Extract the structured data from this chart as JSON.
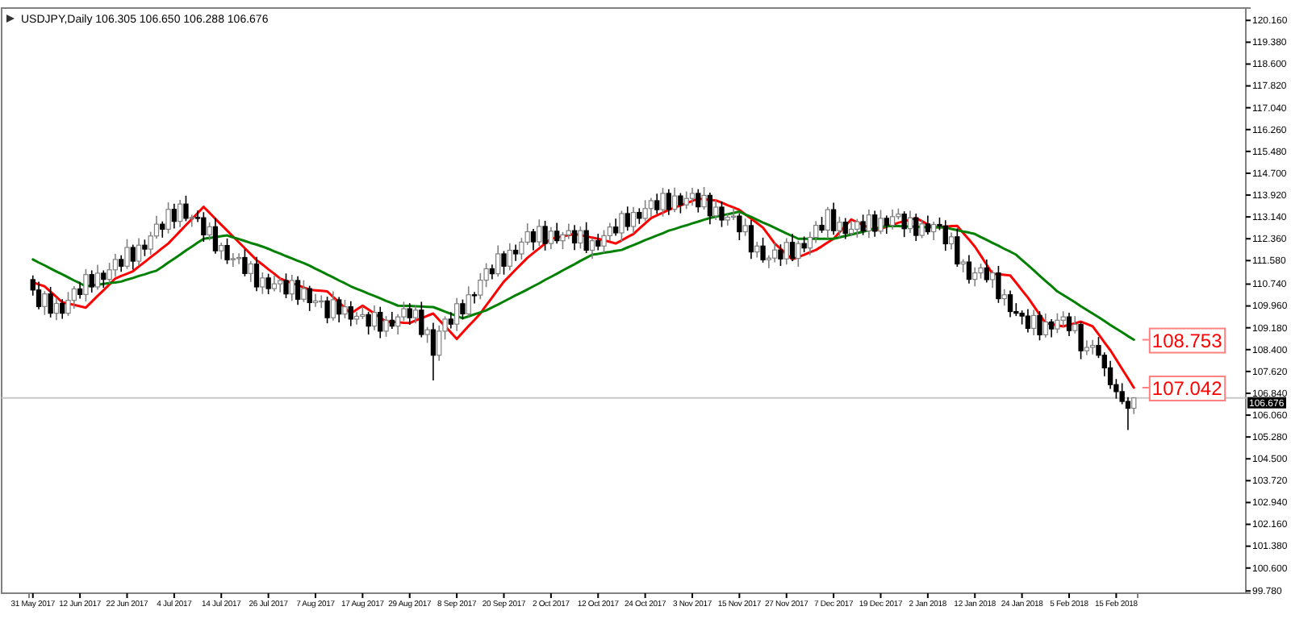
{
  "chart_data": {
    "type": "candlestick",
    "title": "USDJPY,Daily  106.305 106.650 106.288 106.676",
    "categories": [
      "31 May 2017",
      null,
      null,
      null,
      null,
      null,
      null,
      null,
      "12 Jun 2017",
      null,
      null,
      null,
      null,
      null,
      null,
      null,
      "22 Jun 2017",
      null,
      null,
      null,
      null,
      null,
      null,
      null,
      "4 Jul 2017",
      null,
      null,
      null,
      null,
      null,
      null,
      null,
      "14 Jul 2017",
      null,
      null,
      null,
      null,
      null,
      null,
      null,
      "26 Jul 2017",
      null,
      null,
      null,
      null,
      null,
      null,
      null,
      "7 Aug 2017",
      null,
      null,
      null,
      null,
      null,
      null,
      null,
      "17 Aug 2017",
      null,
      null,
      null,
      null,
      null,
      null,
      null,
      "29 Aug 2017",
      null,
      null,
      null,
      null,
      null,
      null,
      null,
      "8 Sep 2017",
      null,
      null,
      null,
      null,
      null,
      null,
      null,
      "20 Sep 2017",
      null,
      null,
      null,
      null,
      null,
      null,
      null,
      "2 Oct 2017",
      null,
      null,
      null,
      null,
      null,
      null,
      null,
      "12 Oct 2017",
      null,
      null,
      null,
      null,
      null,
      null,
      null,
      "24 Oct 2017",
      null,
      null,
      null,
      null,
      null,
      null,
      null,
      "3 Nov 2017",
      null,
      null,
      null,
      null,
      null,
      null,
      null,
      "15 Nov 2017",
      null,
      null,
      null,
      null,
      null,
      null,
      null,
      "27 Nov 2017",
      null,
      null,
      null,
      null,
      null,
      null,
      null,
      "7 Dec 2017",
      null,
      null,
      null,
      null,
      null,
      null,
      null,
      "19 Dec 2017",
      null,
      null,
      null,
      null,
      null,
      null,
      null,
      "2 Jan 2018",
      null,
      null,
      null,
      null,
      null,
      null,
      null,
      "12 Jan 2018",
      null,
      null,
      null,
      null,
      null,
      null,
      null,
      "24 Jan 2018",
      null,
      null,
      null,
      null,
      null,
      null,
      null,
      "5 Feb 2018",
      null,
      null,
      null,
      null,
      null,
      null,
      null,
      "15 Feb 2018",
      null,
      null,
      null
    ],
    "ohlc": [
      [
        110.9,
        111.05,
        110.33,
        110.53
      ],
      [
        110.53,
        110.83,
        109.84,
        109.94
      ],
      [
        109.94,
        110.49,
        109.64,
        110.39
      ],
      [
        110.39,
        110.64,
        109.55,
        109.7
      ],
      [
        109.7,
        110.25,
        109.45,
        110.05
      ],
      [
        110.05,
        110.2,
        109.5,
        109.7
      ],
      [
        109.7,
        110.46,
        109.6,
        110.16
      ],
      [
        110.16,
        110.67,
        109.86,
        110.57
      ],
      [
        110.57,
        110.82,
        110.22,
        110.37
      ],
      [
        110.37,
        111.28,
        110.12,
        111.08
      ],
      [
        111.08,
        111.23,
        110.44,
        110.64
      ],
      [
        110.64,
        111.43,
        110.54,
        111.13
      ],
      [
        111.13,
        111.23,
        110.61,
        110.91
      ],
      [
        110.91,
        111.5,
        110.76,
        111.25
      ],
      [
        111.25,
        111.82,
        111.0,
        111.62
      ],
      [
        111.62,
        111.77,
        111.18,
        111.38
      ],
      [
        111.38,
        112.35,
        111.28,
        112.05
      ],
      [
        112.05,
        112.15,
        111.26,
        111.56
      ],
      [
        111.56,
        112.38,
        111.41,
        112.13
      ],
      [
        112.13,
        112.33,
        111.74,
        111.99
      ],
      [
        111.99,
        112.61,
        111.79,
        112.46
      ],
      [
        112.46,
        113.18,
        112.36,
        112.88
      ],
      [
        112.88,
        112.98,
        112.4,
        112.7
      ],
      [
        112.7,
        113.66,
        112.55,
        113.41
      ],
      [
        113.41,
        113.61,
        112.73,
        112.98
      ],
      [
        112.98,
        113.75,
        112.78,
        113.6
      ],
      [
        113.6,
        113.9,
        112.99,
        113.09
      ],
      [
        113.09,
        113.22,
        112.79,
        113.12
      ],
      [
        113.12,
        113.37,
        112.96,
        113.11
      ],
      [
        113.11,
        113.31,
        112.25,
        112.5
      ],
      [
        112.5,
        112.94,
        112.3,
        112.79
      ],
      [
        112.79,
        113.09,
        111.83,
        111.93
      ],
      [
        111.93,
        112.22,
        111.63,
        112.12
      ],
      [
        112.12,
        112.37,
        111.46,
        111.61
      ],
      [
        111.61,
        111.85,
        111.36,
        111.65
      ],
      [
        111.65,
        111.84,
        111.45,
        111.69
      ],
      [
        111.69,
        111.99,
        111.02,
        111.12
      ],
      [
        111.12,
        111.56,
        110.82,
        111.46
      ],
      [
        111.46,
        111.71,
        110.49,
        110.64
      ],
      [
        110.64,
        111.16,
        110.39,
        110.96
      ],
      [
        110.96,
        111.11,
        110.38,
        110.58
      ],
      [
        110.58,
        111.05,
        110.48,
        110.75
      ],
      [
        110.75,
        110.97,
        110.45,
        110.87
      ],
      [
        110.87,
        111.12,
        110.24,
        110.39
      ],
      [
        110.39,
        111.07,
        110.14,
        110.87
      ],
      [
        110.87,
        111.02,
        110.0,
        110.2
      ],
      [
        110.2,
        110.88,
        110.1,
        110.58
      ],
      [
        110.58,
        110.68,
        109.78,
        110.08
      ],
      [
        110.08,
        110.39,
        109.93,
        110.14
      ],
      [
        110.14,
        110.34,
        109.89,
        110.14
      ],
      [
        110.14,
        110.29,
        109.34,
        109.54
      ],
      [
        109.54,
        110.48,
        109.44,
        110.18
      ],
      [
        110.18,
        110.28,
        109.37,
        109.67
      ],
      [
        109.67,
        110.18,
        109.52,
        109.93
      ],
      [
        109.93,
        110.13,
        109.24,
        109.49
      ],
      [
        109.49,
        109.74,
        109.29,
        109.59
      ],
      [
        109.59,
        109.95,
        109.49,
        109.65
      ],
      [
        109.65,
        109.75,
        108.94,
        109.24
      ],
      [
        109.24,
        109.98,
        109.09,
        109.73
      ],
      [
        109.73,
        109.93,
        108.81,
        109.06
      ],
      [
        109.06,
        109.6,
        108.86,
        109.45
      ],
      [
        109.45,
        109.75,
        109.14,
        109.24
      ],
      [
        109.24,
        109.67,
        108.94,
        109.57
      ],
      [
        109.57,
        110.11,
        109.42,
        109.86
      ],
      [
        109.86,
        110.06,
        109.29,
        109.54
      ],
      [
        109.54,
        109.96,
        109.34,
        109.81
      ],
      [
        109.81,
        110.11,
        108.84,
        108.94
      ],
      [
        108.94,
        109.21,
        108.64,
        109.11
      ],
      [
        109.11,
        109.36,
        107.3,
        108.2
      ],
      [
        108.2,
        109.26,
        108.0,
        109.06
      ],
      [
        109.06,
        109.59,
        108.76,
        109.49
      ],
      [
        109.49,
        109.74,
        109.16,
        109.31
      ],
      [
        109.31,
        110.24,
        109.06,
        110.04
      ],
      [
        110.04,
        110.19,
        109.48,
        109.68
      ],
      [
        109.68,
        110.66,
        109.58,
        110.36
      ],
      [
        110.36,
        110.46,
        110.05,
        110.35
      ],
      [
        110.35,
        111.13,
        110.2,
        110.88
      ],
      [
        110.88,
        111.49,
        110.63,
        111.29
      ],
      [
        111.29,
        111.44,
        110.91,
        111.11
      ],
      [
        111.11,
        112.12,
        111.01,
        111.82
      ],
      [
        111.82,
        111.92,
        111.08,
        111.38
      ],
      [
        111.38,
        112.2,
        111.23,
        111.95
      ],
      [
        111.95,
        112.15,
        111.57,
        111.82
      ],
      [
        111.82,
        112.39,
        111.62,
        112.24
      ],
      [
        112.24,
        112.91,
        112.14,
        112.61
      ],
      [
        112.61,
        112.71,
        111.95,
        112.25
      ],
      [
        112.25,
        113.05,
        112.1,
        112.8
      ],
      [
        112.8,
        113.0,
        111.94,
        112.19
      ],
      [
        112.19,
        112.78,
        111.99,
        112.63
      ],
      [
        112.63,
        112.93,
        112.19,
        112.29
      ],
      [
        112.29,
        112.6,
        111.99,
        112.5
      ],
      [
        112.5,
        112.9,
        112.35,
        112.65
      ],
      [
        112.65,
        112.85,
        111.96,
        112.21
      ],
      [
        112.21,
        112.8,
        112.01,
        112.65
      ],
      [
        112.65,
        112.95,
        111.85,
        111.95
      ],
      [
        111.95,
        112.39,
        111.65,
        112.29
      ],
      [
        112.29,
        112.54,
        111.95,
        112.1
      ],
      [
        112.1,
        112.67,
        111.85,
        112.47
      ],
      [
        112.47,
        112.93,
        112.27,
        112.78
      ],
      [
        112.78,
        113.08,
        112.47,
        112.57
      ],
      [
        112.57,
        113.36,
        112.27,
        113.26
      ],
      [
        113.26,
        113.51,
        112.65,
        112.8
      ],
      [
        112.8,
        113.5,
        112.55,
        113.3
      ],
      [
        113.3,
        113.45,
        112.89,
        113.09
      ],
      [
        113.09,
        113.74,
        112.99,
        113.44
      ],
      [
        113.44,
        113.82,
        113.14,
        113.72
      ],
      [
        113.72,
        113.97,
        113.25,
        113.4
      ],
      [
        113.4,
        114.18,
        113.15,
        113.98
      ],
      [
        113.98,
        114.13,
        113.21,
        113.41
      ],
      [
        113.41,
        114.19,
        113.31,
        113.89
      ],
      [
        113.89,
        113.99,
        113.27,
        113.57
      ],
      [
        113.57,
        114.05,
        113.42,
        113.8
      ],
      [
        113.8,
        114.18,
        113.55,
        113.98
      ],
      [
        113.98,
        114.13,
        113.3,
        113.5
      ],
      [
        113.5,
        114.21,
        113.4,
        113.91
      ],
      [
        113.91,
        114.01,
        112.88,
        113.18
      ],
      [
        113.18,
        113.74,
        113.03,
        113.49
      ],
      [
        113.49,
        113.69,
        112.78,
        113.03
      ],
      [
        113.03,
        113.28,
        112.83,
        113.13
      ],
      [
        113.13,
        113.47,
        113.03,
        113.17
      ],
      [
        113.17,
        113.27,
        112.31,
        112.61
      ],
      [
        112.61,
        113.08,
        112.46,
        112.83
      ],
      [
        112.83,
        113.03,
        111.64,
        111.89
      ],
      [
        111.89,
        112.25,
        111.69,
        112.1
      ],
      [
        112.1,
        112.4,
        111.51,
        111.61
      ],
      [
        111.61,
        111.77,
        111.31,
        111.67
      ],
      [
        111.67,
        112.21,
        111.52,
        111.96
      ],
      [
        111.96,
        112.16,
        111.39,
        111.64
      ],
      [
        111.64,
        112.38,
        111.44,
        112.23
      ],
      [
        112.23,
        112.53,
        111.56,
        111.66
      ],
      [
        111.66,
        112.29,
        111.36,
        112.19
      ],
      [
        112.19,
        112.44,
        111.88,
        112.03
      ],
      [
        112.03,
        112.61,
        111.78,
        112.41
      ],
      [
        112.41,
        112.99,
        112.21,
        112.84
      ],
      [
        112.84,
        113.14,
        112.57,
        112.67
      ],
      [
        112.67,
        113.5,
        112.37,
        113.4
      ],
      [
        113.4,
        113.65,
        112.5,
        112.65
      ],
      [
        112.65,
        113.15,
        112.4,
        112.95
      ],
      [
        112.95,
        113.1,
        112.35,
        112.55
      ],
      [
        112.55,
        113.0,
        112.45,
        112.7
      ],
      [
        112.7,
        113.07,
        112.4,
        112.97
      ],
      [
        112.97,
        113.22,
        112.49,
        112.64
      ],
      [
        112.64,
        113.41,
        112.39,
        113.21
      ],
      [
        113.21,
        113.36,
        112.43,
        112.63
      ],
      [
        112.63,
        113.39,
        112.53,
        113.09
      ],
      [
        113.09,
        113.19,
        112.54,
        112.84
      ],
      [
        112.84,
        113.4,
        112.69,
        113.15
      ],
      [
        113.15,
        113.44,
        113.05,
        113.24
      ],
      [
        113.24,
        113.34,
        112.42,
        112.72
      ],
      [
        112.72,
        113.36,
        112.57,
        113.11
      ],
      [
        113.11,
        113.26,
        112.28,
        112.48
      ],
      [
        112.48,
        113.04,
        112.38,
        112.89
      ],
      [
        112.89,
        113.19,
        112.51,
        112.61
      ],
      [
        112.61,
        112.97,
        112.31,
        112.87
      ],
      [
        112.87,
        113.12,
        112.67,
        112.82
      ],
      [
        112.82,
        113.02,
        111.93,
        112.18
      ],
      [
        112.18,
        112.58,
        111.98,
        112.43
      ],
      [
        112.43,
        112.73,
        111.36,
        111.46
      ],
      [
        111.46,
        111.63,
        111.16,
        111.53
      ],
      [
        111.53,
        111.78,
        110.76,
        110.91
      ],
      [
        110.91,
        111.34,
        110.66,
        111.14
      ],
      [
        111.14,
        111.47,
        110.94,
        111.32
      ],
      [
        111.32,
        111.62,
        110.8,
        110.9
      ],
      [
        110.9,
        111.24,
        110.6,
        111.14
      ],
      [
        111.14,
        111.39,
        110.07,
        110.22
      ],
      [
        110.22,
        110.56,
        109.97,
        110.36
      ],
      [
        110.36,
        110.51,
        109.56,
        109.76
      ],
      [
        109.76,
        110.06,
        109.6,
        109.7
      ],
      [
        109.7,
        109.8,
        109.3,
        109.6
      ],
      [
        109.6,
        109.85,
        109.01,
        109.16
      ],
      [
        109.16,
        109.82,
        108.91,
        109.62
      ],
      [
        109.62,
        109.77,
        108.73,
        108.93
      ],
      [
        108.93,
        109.69,
        108.83,
        109.39
      ],
      [
        109.39,
        109.49,
        108.84,
        109.14
      ],
      [
        109.14,
        109.7,
        108.99,
        109.45
      ],
      [
        109.45,
        109.77,
        109.2,
        109.57
      ],
      [
        109.57,
        109.72,
        108.88,
        109.08
      ],
      [
        109.08,
        109.6,
        108.98,
        109.3
      ],
      [
        109.3,
        109.4,
        108.06,
        108.36
      ],
      [
        108.36,
        108.73,
        108.21,
        108.48
      ],
      [
        108.48,
        108.75,
        108.23,
        108.55
      ],
      [
        108.55,
        108.85,
        108.1,
        108.2
      ],
      [
        108.2,
        108.3,
        107.45,
        107.75
      ],
      [
        107.75,
        108.0,
        107.0,
        107.15
      ],
      [
        107.15,
        107.35,
        106.65,
        106.9
      ],
      [
        106.9,
        107.2,
        106.45,
        106.55
      ],
      [
        106.55,
        106.7,
        105.53,
        106.305
      ],
      [
        106.305,
        106.7,
        106.1,
        106.676
      ]
    ],
    "series": [
      {
        "type": "line",
        "color": "#ff0000",
        "values": [
          110.8,
          110.73,
          110.66,
          110.47,
          110.28,
          110.09,
          110.04,
          110.0,
          109.95,
          109.9,
          110.11,
          110.32,
          110.52,
          110.73,
          110.94,
          111.03,
          111.11,
          111.2,
          111.37,
          111.53,
          111.7,
          111.86,
          112.03,
          112.19,
          112.41,
          112.63,
          112.85,
          113.06,
          113.28,
          113.5,
          113.29,
          113.07,
          112.86,
          112.65,
          112.44,
          112.23,
          112.02,
          111.81,
          111.6,
          111.44,
          111.27,
          111.11,
          110.94,
          110.86,
          110.78,
          110.7,
          110.62,
          110.54,
          110.52,
          110.5,
          110.48,
          110.28,
          110.09,
          109.89,
          109.69,
          109.83,
          109.97,
          109.83,
          109.69,
          109.54,
          109.4,
          109.39,
          109.38,
          109.36,
          109.35,
          109.44,
          109.52,
          109.61,
          109.69,
          109.46,
          109.24,
          109.01,
          108.78,
          109.01,
          109.24,
          109.46,
          109.69,
          109.98,
          110.26,
          110.55,
          110.83,
          111.04,
          111.26,
          111.47,
          111.68,
          111.85,
          112.02,
          112.19,
          112.36,
          112.4,
          112.45,
          112.49,
          112.53,
          112.49,
          112.45,
          112.4,
          112.36,
          112.3,
          112.25,
          112.19,
          112.3,
          112.42,
          112.53,
          112.72,
          112.91,
          113.1,
          113.2,
          113.29,
          113.39,
          113.47,
          113.55,
          113.63,
          113.71,
          113.79,
          113.77,
          113.75,
          113.73,
          113.65,
          113.56,
          113.48,
          113.39,
          113.23,
          113.08,
          112.92,
          112.76,
          112.48,
          112.19,
          112.0,
          111.81,
          111.62,
          111.71,
          111.79,
          111.88,
          111.96,
          112.09,
          112.23,
          112.36,
          112.59,
          112.82,
          113.05,
          112.95,
          112.85,
          112.75,
          112.65,
          112.72,
          112.79,
          112.86,
          112.93,
          112.99,
          113.04,
          113.1,
          112.99,
          112.87,
          112.76,
          112.78,
          112.79,
          112.81,
          112.82,
          112.57,
          112.33,
          112.08,
          111.76,
          111.43,
          111.11,
          111.09,
          111.07,
          111.05,
          110.79,
          110.52,
          110.26,
          109.96,
          109.65,
          109.35,
          109.31,
          109.27,
          109.23,
          109.29,
          109.34,
          109.4,
          109.32,
          109.23,
          108.95,
          108.66,
          108.38,
          108.05,
          107.71,
          107.38,
          107.042
        ]
      },
      {
        "type": "line",
        "color": "#008000",
        "values": [
          111.62,
          111.51,
          111.41,
          111.3,
          111.19,
          111.09,
          110.98,
          110.87,
          110.77,
          110.66,
          110.69,
          110.72,
          110.75,
          110.78,
          110.8,
          110.83,
          110.9,
          110.96,
          111.03,
          111.09,
          111.16,
          111.22,
          111.36,
          111.51,
          111.65,
          111.79,
          111.94,
          112.08,
          112.22,
          112.36,
          112.39,
          112.42,
          112.45,
          112.48,
          112.41,
          112.35,
          112.28,
          112.21,
          112.15,
          112.08,
          112.0,
          111.91,
          111.83,
          111.74,
          111.66,
          111.57,
          111.49,
          111.4,
          111.29,
          111.19,
          111.08,
          110.98,
          110.87,
          110.77,
          110.66,
          110.57,
          110.49,
          110.4,
          110.32,
          110.23,
          110.14,
          110.06,
          109.97,
          109.96,
          109.96,
          109.95,
          109.94,
          109.93,
          109.92,
          109.84,
          109.76,
          109.68,
          109.6,
          109.52,
          109.59,
          109.66,
          109.73,
          109.8,
          109.91,
          110.01,
          110.12,
          110.23,
          110.34,
          110.44,
          110.55,
          110.66,
          110.77,
          110.89,
          111.0,
          111.11,
          111.23,
          111.34,
          111.45,
          111.57,
          111.68,
          111.79,
          111.82,
          111.86,
          111.89,
          111.93,
          111.96,
          112.05,
          112.13,
          112.22,
          112.31,
          112.39,
          112.48,
          112.56,
          112.65,
          112.71,
          112.78,
          112.84,
          112.91,
          112.97,
          113.04,
          113.1,
          113.15,
          113.19,
          113.24,
          113.28,
          113.33,
          113.23,
          113.14,
          113.04,
          112.94,
          112.85,
          112.75,
          112.65,
          112.55,
          112.46,
          112.36,
          112.36,
          112.36,
          112.36,
          112.36,
          112.36,
          112.36,
          112.41,
          112.46,
          112.51,
          112.56,
          112.61,
          112.67,
          112.72,
          112.77,
          112.82,
          112.81,
          112.81,
          112.8,
          112.8,
          112.79,
          112.78,
          112.78,
          112.77,
          112.77,
          112.76,
          112.71,
          112.67,
          112.62,
          112.58,
          112.53,
          112.42,
          112.32,
          112.21,
          112.11,
          112.0,
          111.9,
          111.79,
          111.6,
          111.42,
          111.23,
          111.04,
          110.85,
          110.67,
          110.48,
          110.35,
          110.22,
          110.09,
          109.95,
          109.82,
          109.69,
          109.56,
          109.42,
          109.28,
          109.15,
          109.02,
          108.88,
          108.753
        ]
      }
    ],
    "annotations": [
      "107.042",
      "108.753"
    ],
    "ref_lines": [
      {
        "axis": "y",
        "value": 106.676,
        "label": "106.676",
        "color": "#c8c8c8"
      }
    ],
    "ylim": [
      99.7,
      120.6
    ],
    "yticks": [
      {
        "value": 120.16,
        "label": "120.160"
      },
      {
        "value": 119.38,
        "label": "119.380"
      },
      {
        "value": 118.6,
        "label": "118.600"
      },
      {
        "value": 117.82,
        "label": "117.820"
      },
      {
        "value": 117.04,
        "label": "117.040"
      },
      {
        "value": 116.26,
        "label": "116.260"
      },
      {
        "value": 115.48,
        "label": "115.480"
      },
      {
        "value": 114.7,
        "label": "114.700"
      },
      {
        "value": 113.92,
        "label": "113.920"
      },
      {
        "value": 113.14,
        "label": "113.140"
      },
      {
        "value": 112.36,
        "label": "112.360"
      },
      {
        "value": 111.58,
        "label": "111.580"
      },
      {
        "value": 110.74,
        "label": "110.740"
      },
      {
        "value": 109.96,
        "label": "109.960"
      },
      {
        "value": 109.18,
        "label": "109.180"
      },
      {
        "value": 108.4,
        "label": "108.400"
      },
      {
        "value": 107.62,
        "label": "107.620"
      },
      {
        "value": 106.84,
        "label": "106.840"
      },
      {
        "value": 106.06,
        "label": "106.060"
      },
      {
        "value": 105.28,
        "label": "105.280"
      },
      {
        "value": 104.5,
        "label": "104.500"
      },
      {
        "value": 103.72,
        "label": "103.720"
      },
      {
        "value": 102.94,
        "label": "102.940"
      },
      {
        "value": 102.16,
        "label": "102.160"
      },
      {
        "value": 101.38,
        "label": "101.380"
      },
      {
        "value": 100.6,
        "label": "100.600"
      },
      {
        "value": 99.78,
        "label": "99.780"
      }
    ],
    "grid": false
  }
}
